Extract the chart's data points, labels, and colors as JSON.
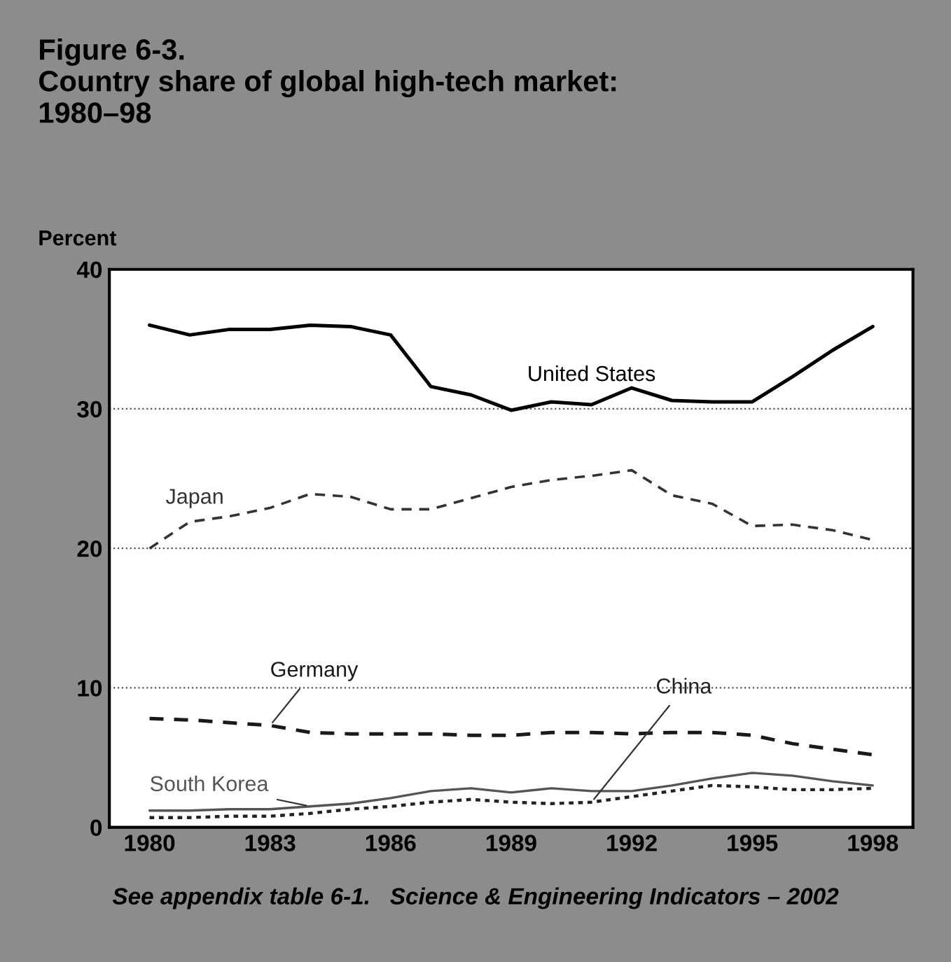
{
  "chart_data": {
    "type": "line",
    "title": "Figure 6-3.\nCountry share of global high-tech market:\n1980–98",
    "ylabel": "Percent",
    "x": [
      1980,
      1981,
      1982,
      1983,
      1984,
      1985,
      1986,
      1987,
      1988,
      1989,
      1990,
      1991,
      1992,
      1993,
      1994,
      1995,
      1996,
      1997,
      1998
    ],
    "series": [
      {
        "name": "United States",
        "color": "#000000",
        "line_style": "solid",
        "values": [
          36.0,
          35.3,
          35.7,
          35.7,
          36.0,
          35.9,
          35.3,
          31.6,
          31.0,
          29.9,
          30.5,
          30.3,
          31.5,
          30.6,
          30.5,
          30.5,
          32.3,
          34.2,
          35.9
        ]
      },
      {
        "name": "Japan",
        "color": "#333333",
        "line_style": "dashed",
        "values": [
          20.0,
          21.9,
          22.3,
          22.9,
          23.9,
          23.7,
          22.8,
          22.8,
          23.6,
          24.4,
          24.9,
          25.2,
          25.6,
          23.8,
          23.2,
          21.6,
          21.7,
          21.3,
          20.6
        ]
      },
      {
        "name": "Germany",
        "color": "#1a1a1a",
        "line_style": "dashed",
        "values": [
          7.8,
          7.7,
          7.5,
          7.3,
          6.8,
          6.7,
          6.7,
          6.7,
          6.6,
          6.6,
          6.8,
          6.8,
          6.7,
          6.8,
          6.8,
          6.6,
          6.0,
          5.6,
          5.2
        ]
      },
      {
        "name": "South Korea",
        "color": "#555555",
        "line_style": "solid",
        "values": [
          1.2,
          1.2,
          1.3,
          1.3,
          1.5,
          1.7,
          2.1,
          2.6,
          2.8,
          2.5,
          2.8,
          2.6,
          2.6,
          3.0,
          3.5,
          3.9,
          3.7,
          3.3,
          3.0
        ]
      },
      {
        "name": "China",
        "color": "#222222",
        "line_style": "dotted",
        "values": [
          0.7,
          0.7,
          0.8,
          0.8,
          1.0,
          1.3,
          1.5,
          1.8,
          2.0,
          1.8,
          1.7,
          1.8,
          2.2,
          2.6,
          3.0,
          2.9,
          2.7,
          2.7,
          2.8
        ]
      }
    ],
    "xlim": [
      1979,
      1999
    ],
    "ylim": [
      0,
      40
    ],
    "xticks": [
      1980,
      1983,
      1986,
      1989,
      1992,
      1995,
      1998
    ],
    "yticks": [
      0,
      10,
      20,
      30,
      40
    ],
    "grid": "y",
    "legend": false,
    "annotations": [
      "See appendix table 6-1.   Science & Engineering Indicators – 2002"
    ]
  }
}
